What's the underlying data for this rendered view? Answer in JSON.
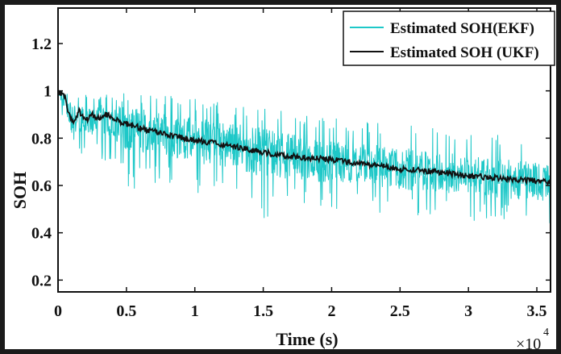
{
  "chart_data": {
    "type": "line",
    "title": "",
    "xlabel": "Time (s)",
    "ylabel": "SOH",
    "x_exponent_label": "×10",
    "x_exponent_power": "4",
    "xlim": [
      0,
      3.6
    ],
    "ylim": [
      0.15,
      1.35
    ],
    "x_ticks": [
      0,
      0.5,
      1,
      1.5,
      2,
      2.5,
      3,
      3.5
    ],
    "x_tick_labels": [
      "0",
      "0.5",
      "1",
      "1.5",
      "2",
      "2.5",
      "3",
      "3.5"
    ],
    "y_ticks": [
      0.2,
      0.4,
      0.6,
      0.8,
      1,
      1.2
    ],
    "y_tick_labels": [
      "0.2",
      "0.4",
      "0.6",
      "0.8",
      "1",
      "1.2"
    ],
    "grid": false,
    "legend_position": "top-right",
    "series": [
      {
        "name": "Estimated SOH(EKF)",
        "color": "#1ec8c8",
        "style": "noisy band around trend",
        "x": [
          0,
          0.05,
          0.1,
          0.2,
          0.3,
          0.4,
          0.5,
          0.75,
          1.0,
          1.25,
          1.5,
          1.75,
          2.0,
          2.25,
          2.5,
          2.75,
          3.0,
          3.25,
          3.5,
          3.6
        ],
        "values": [
          1.0,
          0.95,
          0.88,
          0.87,
          0.88,
          0.87,
          0.84,
          0.82,
          0.79,
          0.77,
          0.74,
          0.72,
          0.7,
          0.69,
          0.67,
          0.66,
          0.64,
          0.63,
          0.62,
          0.61
        ],
        "band_min": [
          0.96,
          0.8,
          0.74,
          0.73,
          0.72,
          0.68,
          0.58,
          0.6,
          0.55,
          0.52,
          0.45,
          0.5,
          0.48,
          0.5,
          0.46,
          0.47,
          0.45,
          0.45,
          0.42,
          0.44
        ],
        "band_max": [
          1.0,
          1.0,
          1.0,
          1.0,
          0.99,
          0.99,
          1.0,
          0.99,
          0.97,
          0.95,
          0.93,
          0.91,
          0.89,
          0.88,
          0.86,
          0.85,
          0.83,
          0.82,
          0.8,
          0.79
        ]
      },
      {
        "name": "Estimated SOH (UKF)",
        "color": "#111111",
        "x": [
          0,
          0.05,
          0.08,
          0.12,
          0.15,
          0.2,
          0.25,
          0.3,
          0.35,
          0.4,
          0.45,
          0.5,
          0.75,
          1.0,
          1.25,
          1.5,
          1.75,
          2.0,
          2.25,
          2.5,
          2.75,
          3.0,
          3.25,
          3.5,
          3.6
        ],
        "values": [
          1.0,
          0.97,
          0.9,
          0.86,
          0.92,
          0.87,
          0.9,
          0.88,
          0.9,
          0.89,
          0.87,
          0.86,
          0.82,
          0.79,
          0.77,
          0.74,
          0.72,
          0.71,
          0.69,
          0.67,
          0.66,
          0.64,
          0.63,
          0.62,
          0.61
        ]
      }
    ]
  }
}
